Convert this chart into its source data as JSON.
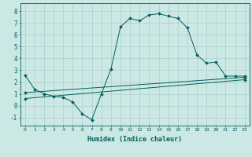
{
  "xlabel": "Humidex (Indice chaleur)",
  "xlim": [
    -0.5,
    23.5
  ],
  "ylim": [
    -1.7,
    8.7
  ],
  "xticks": [
    0,
    1,
    2,
    3,
    4,
    5,
    6,
    7,
    8,
    9,
    10,
    11,
    12,
    13,
    14,
    15,
    16,
    17,
    18,
    19,
    20,
    21,
    22,
    23
  ],
  "yticks": [
    -1,
    0,
    1,
    2,
    3,
    4,
    5,
    6,
    7,
    8
  ],
  "bg_color": "#cce8e4",
  "line_color": "#006060",
  "grid_color": "#aacfcc",
  "line1_x": [
    0,
    1,
    2,
    3,
    4,
    5,
    6,
    7,
    8,
    9,
    10,
    11,
    12,
    13,
    14,
    15,
    16,
    17,
    18,
    19,
    20,
    21,
    22,
    23
  ],
  "line1_y": [
    2.6,
    1.4,
    1.0,
    0.8,
    0.7,
    0.3,
    -0.7,
    -1.2,
    1.0,
    3.1,
    6.7,
    7.4,
    7.2,
    7.7,
    7.8,
    7.6,
    7.4,
    6.6,
    4.3,
    3.6,
    3.7,
    2.5,
    2.5,
    2.5
  ],
  "line2_x": [
    0,
    23
  ],
  "line2_y": [
    1.1,
    2.4
  ],
  "line3_x": [
    0,
    23
  ],
  "line3_y": [
    0.6,
    2.2
  ],
  "markersize": 2.0,
  "linewidth": 0.7,
  "xtick_fontsize": 4.5,
  "ytick_fontsize": 5.5,
  "xlabel_fontsize": 6.0
}
